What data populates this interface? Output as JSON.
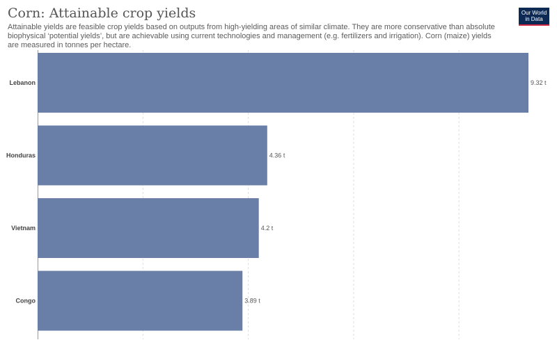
{
  "header": {
    "title": "Corn: Attainable crop yields",
    "subtitle": "Attainable yields are feasible crop yields based on outputs from high-yielding areas of similar climate. They are more conservative than absolute biophysical ‘potential yields’, but are achievable using current technologies and management (e.g. fertilizers and irrigation). Corn (maize) yields are measured in tonnes per hectare."
  },
  "logo": {
    "line1": "Our World",
    "line2": "in Data",
    "bg_color": "#0d2a55",
    "accent_color": "#cf2540"
  },
  "chart_data": {
    "type": "bar",
    "orientation": "horizontal",
    "categories": [
      "Lebanon",
      "Honduras",
      "Vietnam",
      "Congo"
    ],
    "values": [
      9.32,
      4.36,
      4.2,
      3.89
    ],
    "value_labels": [
      "9.32 t",
      "4.36 t",
      "4.2 t",
      "3.89 t"
    ],
    "unit": "t",
    "xlim": [
      0,
      9.32
    ],
    "grid": true,
    "bar_color": "#6a7fa8"
  }
}
